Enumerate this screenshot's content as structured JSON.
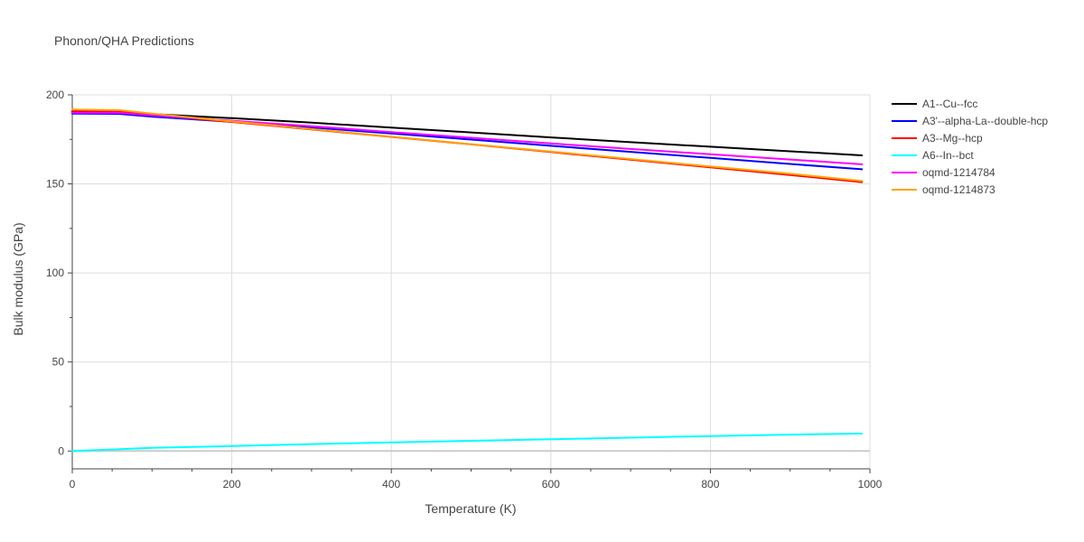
{
  "chart_data": {
    "type": "line",
    "title": "Phonon/QHA Predictions",
    "xlabel": "Temperature (K)",
    "ylabel": "Bulk modulus (GPa)",
    "xlim": [
      0,
      1000
    ],
    "ylim": [
      -10,
      200
    ],
    "x_ticks": [
      "0",
      "200",
      "400",
      "600",
      "800",
      "1000"
    ],
    "y_ticks": [
      "0",
      "50",
      "100",
      "150",
      "200"
    ],
    "grid": true,
    "legend_position": "top-right",
    "x": [
      0,
      60,
      100,
      200,
      300,
      400,
      500,
      600,
      700,
      800,
      900,
      990
    ],
    "series": [
      {
        "name": "A1--Cu--fcc",
        "color": "#000000",
        "values": [
          190.5,
          190.3,
          189.2,
          186.9,
          184.4,
          181.6,
          178.9,
          176.1,
          173.4,
          170.9,
          168.3,
          166.0
        ]
      },
      {
        "name": "A3'--alpha-La--double-hcp",
        "color": "#0000ff",
        "values": [
          189.5,
          189.3,
          187.8,
          184.9,
          181.7,
          178.3,
          174.9,
          171.4,
          168.0,
          164.6,
          161.2,
          158.2
        ]
      },
      {
        "name": "A3--Mg--hcp",
        "color": "#ff0000",
        "values": [
          191.0,
          190.8,
          188.8,
          184.8,
          180.6,
          176.4,
          172.2,
          167.9,
          163.6,
          159.3,
          155.0,
          151.0
        ]
      },
      {
        "name": "A6--In--bct",
        "color": "#00ffff",
        "values": [
          0.0,
          1.0,
          1.8,
          2.8,
          3.9,
          4.8,
          5.7,
          6.6,
          7.5,
          8.4,
          9.2,
          9.8
        ]
      },
      {
        "name": "oqmd-1214784",
        "color": "#ff00ff",
        "values": [
          190.0,
          189.9,
          188.5,
          185.5,
          182.4,
          179.1,
          175.9,
          172.7,
          169.6,
          166.6,
          163.7,
          161.0
        ]
      },
      {
        "name": "oqmd-1214873",
        "color": "#ffa500",
        "values": [
          191.8,
          191.4,
          189.5,
          185.1,
          180.8,
          176.5,
          172.3,
          168.2,
          164.0,
          159.8,
          155.7,
          151.7
        ]
      }
    ]
  }
}
